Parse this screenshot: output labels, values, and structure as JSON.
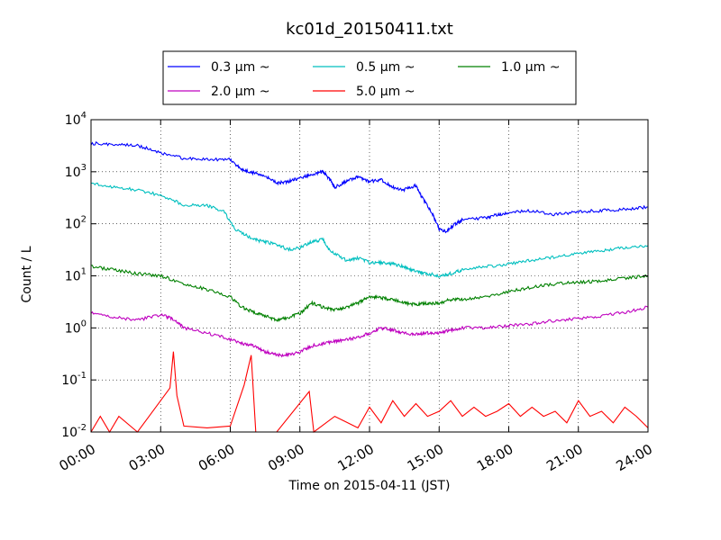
{
  "chart_data": {
    "type": "line",
    "title": "kc01d_20150411.txt",
    "xlabel": "Time on 2015-04-11 (JST)",
    "ylabel": "Count / L",
    "xlim_hours": [
      0,
      24
    ],
    "ylim": [
      0.01,
      10000
    ],
    "yscale": "log",
    "grid": true,
    "legend_placement": "top-center",
    "x_tick_labels": [
      "00:00",
      "03:00",
      "06:00",
      "09:00",
      "12:00",
      "15:00",
      "18:00",
      "21:00",
      "24:00"
    ],
    "y_tick_labels": [
      {
        "base": "10",
        "exp": "-2"
      },
      {
        "base": "10",
        "exp": "-1"
      },
      {
        "base": "10",
        "exp": "0"
      },
      {
        "base": "10",
        "exp": "1"
      },
      {
        "base": "10",
        "exp": "2"
      },
      {
        "base": "10",
        "exp": "3"
      },
      {
        "base": "10",
        "exp": "4"
      }
    ],
    "series": [
      {
        "name": "0.3 μm ~",
        "size": "0.3",
        "color": "#0000ff",
        "points": [
          [
            0,
            3500
          ],
          [
            1,
            3400
          ],
          [
            2,
            3200
          ],
          [
            3,
            2300
          ],
          [
            4,
            1800
          ],
          [
            5,
            1750
          ],
          [
            6,
            1700
          ],
          [
            6.5,
            1100
          ],
          [
            7,
            950
          ],
          [
            7.5,
            850
          ],
          [
            8,
            600
          ],
          [
            8.5,
            650
          ],
          [
            9,
            750
          ],
          [
            9.5,
            900
          ],
          [
            10,
            1000
          ],
          [
            10.3,
            700
          ],
          [
            10.5,
            500
          ],
          [
            11,
            650
          ],
          [
            11.5,
            800
          ],
          [
            12,
            650
          ],
          [
            12.5,
            700
          ],
          [
            13,
            500
          ],
          [
            13.5,
            450
          ],
          [
            14,
            550
          ],
          [
            14.3,
            300
          ],
          [
            14.7,
            160
          ],
          [
            15,
            80
          ],
          [
            15.3,
            70
          ],
          [
            15.7,
            100
          ],
          [
            16,
            120
          ],
          [
            17,
            130
          ],
          [
            17.5,
            150
          ],
          [
            18,
            160
          ],
          [
            19,
            180
          ],
          [
            20,
            150
          ],
          [
            21,
            170
          ],
          [
            22,
            180
          ],
          [
            23,
            190
          ],
          [
            24,
            210
          ]
        ]
      },
      {
        "name": "0.5 μm ~",
        "size": "0.5",
        "color": "#00bfbf",
        "points": [
          [
            0,
            600
          ],
          [
            1,
            500
          ],
          [
            2,
            450
          ],
          [
            3,
            350
          ],
          [
            4,
            230
          ],
          [
            5,
            220
          ],
          [
            5.7,
            180
          ],
          [
            6.2,
            80
          ],
          [
            7,
            50
          ],
          [
            7.5,
            45
          ],
          [
            8,
            40
          ],
          [
            8.5,
            32
          ],
          [
            9,
            35
          ],
          [
            9.5,
            45
          ],
          [
            10,
            50
          ],
          [
            10.3,
            30
          ],
          [
            11,
            20
          ],
          [
            11.5,
            22
          ],
          [
            12,
            18
          ],
          [
            12.5,
            18
          ],
          [
            13,
            17
          ],
          [
            13.5,
            15
          ],
          [
            14,
            12
          ],
          [
            14.5,
            11
          ],
          [
            15,
            10
          ],
          [
            15.5,
            11
          ],
          [
            16,
            13
          ],
          [
            17,
            15
          ],
          [
            18,
            17
          ],
          [
            19,
            20
          ],
          [
            20,
            23
          ],
          [
            21,
            27
          ],
          [
            22,
            30
          ],
          [
            23,
            35
          ],
          [
            24,
            38
          ]
        ]
      },
      {
        "name": "1.0 μm ~",
        "size": "1.0",
        "color": "#008000",
        "points": [
          [
            0,
            15
          ],
          [
            1,
            13
          ],
          [
            2,
            11
          ],
          [
            3,
            10
          ],
          [
            4,
            7
          ],
          [
            5,
            5.5
          ],
          [
            6,
            4
          ],
          [
            6.5,
            2.5
          ],
          [
            7,
            2
          ],
          [
            7.5,
            1.7
          ],
          [
            8,
            1.4
          ],
          [
            8.5,
            1.6
          ],
          [
            9,
            1.9
          ],
          [
            9.5,
            3
          ],
          [
            10,
            2.5
          ],
          [
            10.5,
            2.2
          ],
          [
            11,
            2.5
          ],
          [
            11.5,
            3
          ],
          [
            12,
            4
          ],
          [
            12.5,
            3.8
          ],
          [
            13,
            3.5
          ],
          [
            13.5,
            3
          ],
          [
            14,
            2.8
          ],
          [
            14.5,
            3
          ],
          [
            15,
            3
          ],
          [
            15.5,
            3.5
          ],
          [
            16,
            3.5
          ],
          [
            17,
            4
          ],
          [
            18,
            5
          ],
          [
            19,
            6
          ],
          [
            20,
            7
          ],
          [
            21,
            7.5
          ],
          [
            22,
            8
          ],
          [
            23,
            9
          ],
          [
            24,
            10
          ]
        ]
      },
      {
        "name": "2.0 μm ~",
        "size": "2.0",
        "color": "#bf00bf",
        "points": [
          [
            0,
            2
          ],
          [
            1,
            1.6
          ],
          [
            2,
            1.4
          ],
          [
            3,
            1.8
          ],
          [
            3.5,
            1.5
          ],
          [
            4,
            1
          ],
          [
            5,
            0.8
          ],
          [
            6,
            0.6
          ],
          [
            6.5,
            0.5
          ],
          [
            7,
            0.45
          ],
          [
            7.5,
            0.35
          ],
          [
            8,
            0.3
          ],
          [
            8.5,
            0.3
          ],
          [
            9,
            0.35
          ],
          [
            9.5,
            0.45
          ],
          [
            10,
            0.5
          ],
          [
            10.5,
            0.55
          ],
          [
            11,
            0.6
          ],
          [
            11.5,
            0.65
          ],
          [
            12,
            0.8
          ],
          [
            12.5,
            1
          ],
          [
            13,
            0.9
          ],
          [
            13.5,
            0.8
          ],
          [
            14,
            0.75
          ],
          [
            14.5,
            0.8
          ],
          [
            15,
            0.8
          ],
          [
            15.5,
            0.9
          ],
          [
            16,
            1
          ],
          [
            17,
            1
          ],
          [
            18,
            1.1
          ],
          [
            19,
            1.2
          ],
          [
            20,
            1.4
          ],
          [
            21,
            1.5
          ],
          [
            22,
            1.7
          ],
          [
            23,
            2
          ],
          [
            24,
            2.5
          ]
        ]
      },
      {
        "name": "5.0 μm ~",
        "size": "5.0",
        "color": "#ff0000",
        "points": [
          [
            0,
            0.01
          ],
          [
            0.4,
            0.02
          ],
          [
            0.8,
            0.01
          ],
          [
            1.2,
            0.02
          ],
          [
            2,
            0.01
          ],
          [
            2.5,
            0.02
          ],
          [
            3.4,
            0.07
          ],
          [
            3.55,
            0.35
          ],
          [
            3.7,
            0.05
          ],
          [
            4,
            0.013
          ],
          [
            5,
            0.012
          ],
          [
            6,
            0.013
          ],
          [
            6.6,
            0.08
          ],
          [
            6.9,
            0.3
          ],
          [
            7.1,
            0.01
          ],
          [
            8,
            0.01
          ],
          [
            9.4,
            0.06
          ],
          [
            9.6,
            0.01
          ],
          [
            10.5,
            0.02
          ],
          [
            11.5,
            0.012
          ],
          [
            12,
            0.03
          ],
          [
            12.5,
            0.015
          ],
          [
            13,
            0.04
          ],
          [
            13.5,
            0.02
          ],
          [
            14,
            0.035
          ],
          [
            14.5,
            0.02
          ],
          [
            15,
            0.025
          ],
          [
            15.5,
            0.04
          ],
          [
            16,
            0.02
          ],
          [
            16.5,
            0.03
          ],
          [
            17,
            0.02
          ],
          [
            17.5,
            0.025
          ],
          [
            18,
            0.035
          ],
          [
            18.5,
            0.02
          ],
          [
            19,
            0.03
          ],
          [
            19.5,
            0.02
          ],
          [
            20,
            0.025
          ],
          [
            20.5,
            0.015
          ],
          [
            21,
            0.04
          ],
          [
            21.5,
            0.02
          ],
          [
            22,
            0.025
          ],
          [
            22.5,
            0.015
          ],
          [
            23,
            0.03
          ],
          [
            23.5,
            0.02
          ],
          [
            24,
            0.012
          ]
        ]
      }
    ]
  }
}
